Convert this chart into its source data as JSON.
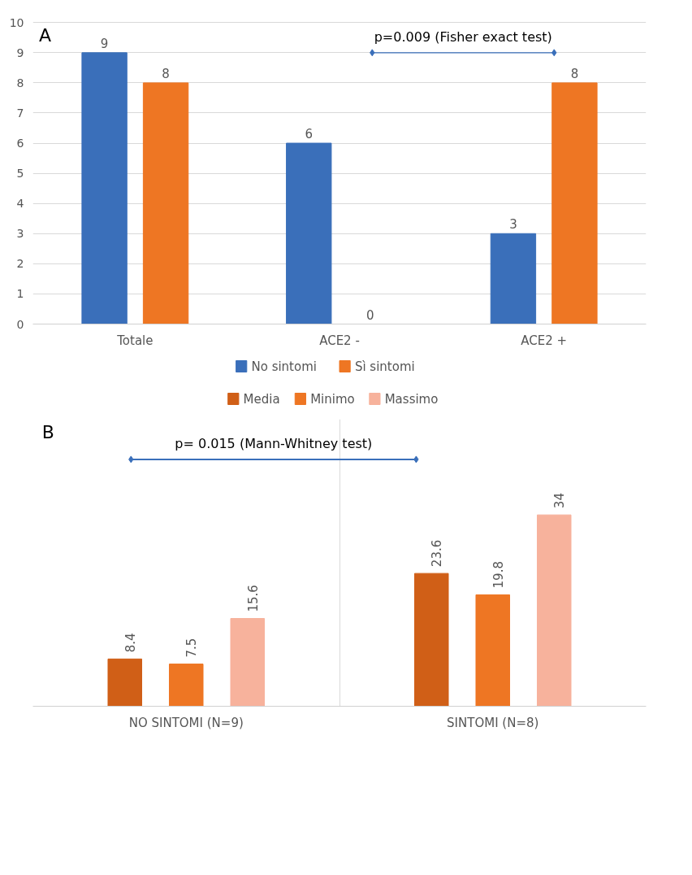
{
  "chart_data": [
    {
      "type": "bar",
      "annotations": [
        "A",
        "p=0.009 (Fisher exact test)"
      ],
      "categories": [
        "Totale",
        "ACE2 -",
        "ACE2 +"
      ],
      "series": [
        {
          "name": "No sintomi",
          "color": "#3a6fba",
          "values": [
            9,
            6,
            3
          ]
        },
        {
          "name": "Sì sintomi",
          "color": "#ee7623",
          "values": [
            8,
            0,
            8
          ]
        }
      ],
      "ylim": [
        0,
        10
      ],
      "yticks": [
        0,
        1,
        2,
        3,
        4,
        5,
        6,
        7,
        8,
        9,
        10
      ],
      "grid": "y",
      "legend": "bottom",
      "data_labels": true
    },
    {
      "type": "bar",
      "annotations": [
        "B",
        "p= 0.015 (Mann-Whitney test)"
      ],
      "categories": [
        "NO SINTOMI (N=9)",
        "SINTOMI (N=8)"
      ],
      "series": [
        {
          "name": "Media",
          "color": "#d05f17",
          "values": [
            8.4,
            23.6
          ]
        },
        {
          "name": "Minimo",
          "color": "#ee7623",
          "values": [
            7.5,
            19.8
          ]
        },
        {
          "name": "Massimo",
          "color": "#f7b29c",
          "values": [
            15.6,
            34
          ]
        }
      ],
      "grid": "x",
      "legend": "top",
      "data_labels": true
    }
  ]
}
